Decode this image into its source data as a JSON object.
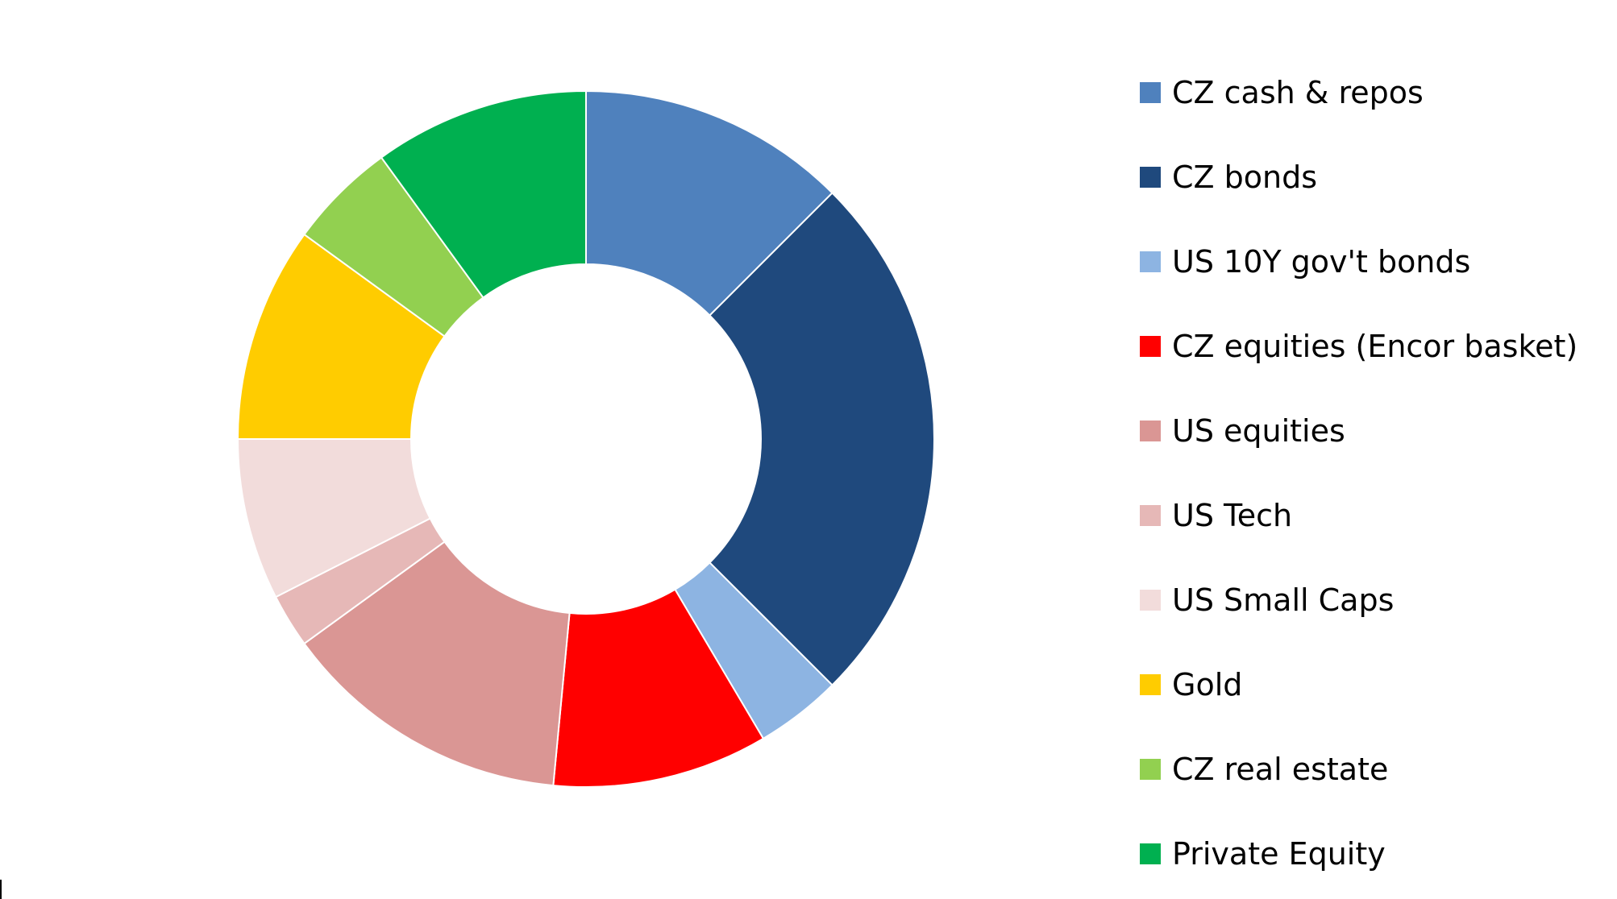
{
  "chart_data": {
    "type": "pie",
    "donut": true,
    "title": "",
    "categories": [
      "CZ cash & repos",
      "CZ bonds",
      "US 10Y gov't bonds",
      "CZ equities (Encor basket)",
      "US equities",
      "US Tech",
      "US Small Caps",
      "Gold",
      "CZ real estate",
      "Private Equity"
    ],
    "values": [
      12.5,
      25,
      4,
      10,
      13.5,
      2.5,
      7.5,
      10,
      5,
      10
    ],
    "colors": [
      "#4F81BD",
      "#1F497D",
      "#8DB4E2",
      "#FF0000",
      "#DA9694",
      "#E6B8B7",
      "#F2DCDB",
      "#FFCC00",
      "#92D050",
      "#00B050"
    ],
    "legend_position": "right",
    "value_unit": "percent of total (estimated)"
  }
}
